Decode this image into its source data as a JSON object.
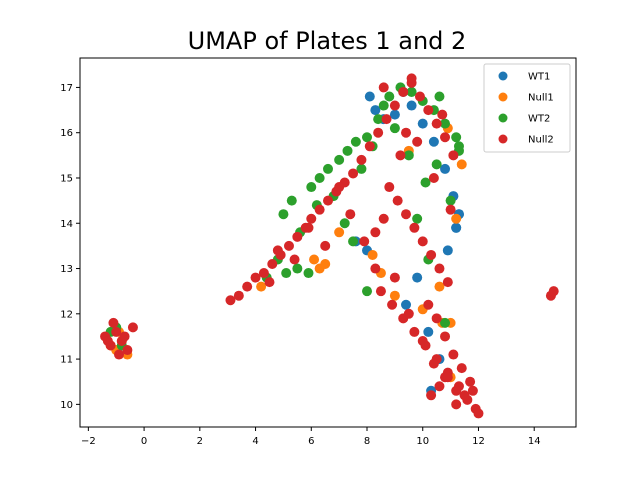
{
  "chart_data": {
    "type": "scatter",
    "title": "UMAP of Plates 1 and 2",
    "xlabel": "",
    "ylabel": "",
    "xlim": [
      -2.3,
      15.5
    ],
    "ylim": [
      9.5,
      17.65
    ],
    "xticks": [
      -2,
      0,
      2,
      4,
      6,
      8,
      10,
      12,
      14
    ],
    "yticks": [
      10,
      11,
      12,
      13,
      14,
      15,
      16,
      17
    ],
    "grid": false,
    "legend_position": "top-right",
    "series": [
      {
        "name": "WT1",
        "color": "#1f77b4",
        "x": [
          8.1,
          8.3,
          8.6,
          9.0,
          9.3,
          9.6,
          10.0,
          10.4,
          10.8,
          11.1,
          11.3,
          11.2,
          10.9,
          8.0,
          7.6,
          9.4,
          10.2,
          10.6,
          9.8,
          10.3,
          11.3,
          11.2
        ],
        "y": [
          16.8,
          16.5,
          16.3,
          16.4,
          16.9,
          16.6,
          16.2,
          15.8,
          15.2,
          14.6,
          14.2,
          13.9,
          13.4,
          13.4,
          13.6,
          12.2,
          11.6,
          11.0,
          12.8,
          10.3,
          14.2,
          13.9
        ]
      },
      {
        "name": "Null1",
        "color": "#ff7f0e",
        "x": [
          -1.2,
          -1.0,
          -0.8,
          -0.6,
          -0.9,
          6.3,
          6.5,
          6.1,
          8.5,
          8.2,
          10.7,
          11.0,
          11.2,
          11.4,
          10.9,
          10.6,
          11.0,
          4.2,
          7.0,
          9.0,
          10.0,
          9.5
        ],
        "y": [
          11.3,
          11.2,
          11.4,
          11.1,
          11.6,
          13.0,
          13.1,
          13.2,
          12.9,
          13.3,
          11.8,
          11.8,
          14.1,
          15.3,
          16.1,
          12.6,
          10.6,
          12.6,
          13.8,
          12.4,
          12.1,
          15.6
        ]
      },
      {
        "name": "WT2",
        "color": "#2ca02c",
        "x": [
          -1.0,
          -0.8,
          -1.2,
          5.0,
          5.3,
          5.6,
          6.0,
          6.3,
          6.6,
          7.0,
          7.3,
          7.6,
          8.0,
          8.4,
          8.8,
          9.2,
          9.6,
          10.0,
          10.4,
          10.8,
          11.2,
          11.3,
          4.8,
          5.5,
          5.9,
          6.2,
          6.8,
          7.2,
          7.8,
          8.2,
          9.0,
          9.5,
          10.1,
          10.5,
          11.0,
          8.6,
          9.8,
          10.2,
          4.4,
          5.1,
          7.5,
          8.0,
          10.8,
          11.3,
          10.6
        ],
        "y": [
          11.7,
          11.3,
          11.6,
          14.2,
          14.5,
          13.8,
          14.8,
          15.0,
          15.2,
          15.4,
          15.6,
          15.8,
          15.9,
          16.3,
          16.8,
          17.0,
          16.9,
          16.7,
          16.5,
          16.2,
          15.9,
          15.6,
          13.2,
          13.0,
          12.9,
          14.4,
          14.6,
          14.0,
          15.2,
          15.7,
          16.1,
          15.5,
          14.9,
          15.3,
          14.5,
          16.6,
          14.1,
          13.2,
          12.8,
          12.9,
          13.6,
          12.5,
          11.8,
          15.7,
          16.8
        ]
      },
      {
        "name": "Null2",
        "color": "#d62728",
        "x": [
          -1.4,
          -1.2,
          -1.0,
          -0.8,
          -0.6,
          -0.4,
          -1.1,
          -0.9,
          -0.7,
          -1.3,
          3.1,
          3.4,
          3.7,
          4.0,
          4.3,
          4.6,
          4.9,
          5.2,
          5.5,
          5.8,
          6.0,
          6.3,
          6.6,
          6.9,
          7.2,
          7.5,
          7.8,
          8.1,
          8.4,
          8.7,
          9.0,
          9.3,
          9.6,
          9.9,
          10.2,
          10.5,
          10.8,
          11.1,
          8.8,
          9.1,
          9.4,
          9.7,
          10.0,
          10.3,
          10.6,
          10.9,
          8.3,
          8.6,
          9.2,
          9.8,
          10.4,
          11.0,
          8.5,
          8.9,
          9.3,
          9.7,
          10.1,
          10.5,
          10.9,
          11.3,
          9.0,
          9.5,
          10.0,
          10.4,
          10.8,
          11.2,
          11.6,
          11.9,
          10.2,
          10.5,
          10.8,
          11.1,
          11.4,
          11.7,
          12.0,
          10.3,
          10.6,
          10.9,
          11.2,
          11.5,
          11.8,
          14.6,
          14.7,
          7.0,
          7.4,
          7.9,
          8.3,
          6.5,
          5.9,
          5.4,
          4.8,
          4.5,
          8.6,
          9.6,
          10.7,
          9.4
        ],
        "y": [
          11.5,
          11.3,
          11.6,
          11.4,
          11.2,
          11.7,
          11.8,
          11.1,
          11.5,
          11.4,
          12.3,
          12.4,
          12.6,
          12.8,
          12.9,
          13.1,
          13.3,
          13.5,
          13.7,
          13.9,
          14.1,
          14.3,
          14.5,
          14.7,
          14.9,
          15.1,
          15.4,
          15.7,
          16.0,
          16.3,
          16.6,
          16.9,
          17.1,
          16.8,
          16.5,
          16.2,
          15.9,
          15.5,
          14.8,
          14.5,
          14.2,
          13.9,
          13.6,
          13.3,
          13.0,
          12.7,
          13.8,
          14.1,
          15.5,
          15.8,
          15.0,
          14.3,
          12.5,
          12.2,
          11.9,
          11.6,
          11.3,
          11.0,
          10.7,
          10.4,
          12.8,
          12.0,
          11.4,
          10.9,
          10.6,
          10.3,
          10.1,
          9.9,
          12.2,
          11.9,
          11.5,
          11.1,
          10.8,
          10.5,
          9.8,
          10.2,
          10.4,
          10.6,
          10.0,
          10.2,
          10.3,
          12.4,
          12.5,
          14.8,
          14.2,
          13.6,
          13.0,
          13.5,
          13.9,
          13.2,
          13.4,
          12.7,
          17.0,
          17.2,
          16.4,
          16.0
        ]
      }
    ]
  }
}
